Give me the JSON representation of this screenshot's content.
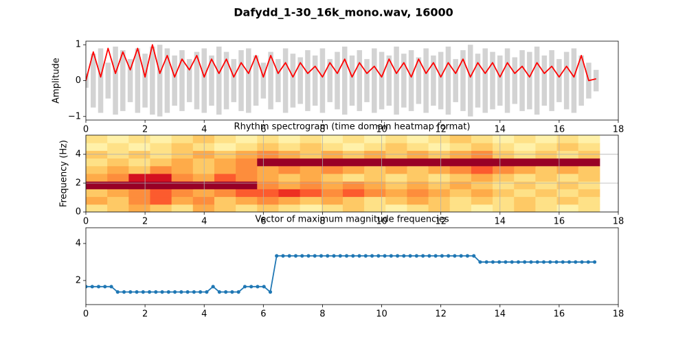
{
  "title": "Dafydd_1-30_16k_mono.wav, 16000",
  "chart_data": [
    {
      "type": "line",
      "ylabel": "Amplitude",
      "x": [
        0,
        0.25,
        0.5,
        0.75,
        1,
        1.25,
        1.5,
        1.75,
        2,
        2.25,
        2.5,
        2.75,
        3,
        3.25,
        3.5,
        3.75,
        4,
        4.25,
        4.5,
        4.75,
        5,
        5.25,
        5.5,
        5.75,
        6,
        6.25,
        6.5,
        6.75,
        7,
        7.25,
        7.5,
        7.75,
        8,
        8.25,
        8.5,
        8.75,
        9,
        9.25,
        9.5,
        9.75,
        10,
        10.25,
        10.5,
        10.75,
        11,
        11.25,
        11.5,
        11.75,
        12,
        12.25,
        12.5,
        12.75,
        13,
        13.25,
        13.5,
        13.75,
        14,
        14.25,
        14.5,
        14.75,
        15,
        15.25,
        15.5,
        15.75,
        16,
        16.25,
        16.5,
        16.75,
        17,
        17.25
      ],
      "series": [
        {
          "style": "band",
          "color": "#d3d3d3",
          "values": [
            0.2,
            0.75,
            0.9,
            0.5,
            0.95,
            0.85,
            0.6,
            0.9,
            0.75,
            0.95,
            1.0,
            0.9,
            0.7,
            0.85,
            0.6,
            0.8,
            0.9,
            0.7,
            0.95,
            0.8,
            0.6,
            0.85,
            0.9,
            0.7,
            0.5,
            0.8,
            0.6,
            0.9,
            0.75,
            0.65,
            0.85,
            0.7,
            0.9,
            0.6,
            0.8,
            0.95,
            0.7,
            0.85,
            0.6,
            0.9,
            0.8,
            0.7,
            0.95,
            0.75,
            0.85,
            0.65,
            0.9,
            0.7,
            0.8,
            0.95,
            0.6,
            0.85,
            1.0,
            0.75,
            0.9,
            0.8,
            0.7,
            0.9,
            0.65,
            0.85,
            0.8,
            0.95,
            0.7,
            0.85,
            0.6,
            0.8,
            0.9,
            0.7,
            0.5,
            0.3
          ]
        },
        {
          "style": "line",
          "color": "#ff0000",
          "values": [
            0,
            0.8,
            0.1,
            0.9,
            0.2,
            0.8,
            0.3,
            0.9,
            0.1,
            1.0,
            0.2,
            0.7,
            0.1,
            0.6,
            0.3,
            0.7,
            0.1,
            0.6,
            0.2,
            0.6,
            0.1,
            0.5,
            0.2,
            0.7,
            0.1,
            0.7,
            0.2,
            0.5,
            0.1,
            0.5,
            0.2,
            0.4,
            0.1,
            0.5,
            0.2,
            0.6,
            0.1,
            0.5,
            0.2,
            0.4,
            0.1,
            0.6,
            0.2,
            0.5,
            0.1,
            0.6,
            0.2,
            0.5,
            0.1,
            0.5,
            0.2,
            0.6,
            0.1,
            0.5,
            0.2,
            0.5,
            0.1,
            0.5,
            0.2,
            0.4,
            0.1,
            0.5,
            0.2,
            0.4,
            0.1,
            0.4,
            0.1,
            0.7,
            0.0,
            0.05
          ]
        }
      ],
      "xlim": [
        0,
        18
      ],
      "xticks": [
        0,
        2,
        4,
        6,
        8,
        10,
        12,
        14,
        16,
        18
      ],
      "ylim": [
        -1.1,
        1.1
      ],
      "yticks": [
        {
          "value": -1,
          "label": "−1"
        },
        0,
        1
      ],
      "grid": false
    },
    {
      "type": "heatmap",
      "title": "Rhythm spectrogram (time domain heatmap format)",
      "ylabel": "Frequency (Hz)",
      "colormap": "YlOrRd",
      "x_extent": [
        0,
        17.37
      ],
      "y_extent": [
        0,
        5.33
      ],
      "z": [
        [
          0.2,
          0.3,
          0.4,
          0.3,
          0.2,
          0.4,
          0.3,
          0.2,
          0.3,
          0.2,
          0.1,
          0.2,
          0.3,
          0.2,
          0.1,
          0.2,
          0.3,
          0.2,
          0.1,
          0.2,
          0.3,
          0.2,
          0.1,
          0.2
        ],
        [
          0.4,
          0.3,
          0.5,
          0.6,
          0.4,
          0.5,
          0.3,
          0.4,
          0.5,
          0.4,
          0.3,
          0.4,
          0.3,
          0.2,
          0.3,
          0.4,
          0.3,
          0.2,
          0.3,
          0.2,
          0.3,
          0.2,
          0.3,
          0.2
        ],
        [
          0.3,
          0.4,
          0.5,
          0.6,
          0.5,
          0.4,
          0.5,
          0.6,
          0.6,
          0.7,
          0.6,
          0.5,
          0.6,
          0.5,
          0.4,
          0.5,
          0.4,
          0.3,
          0.4,
          0.3,
          0.2,
          0.3,
          0.2,
          0.3
        ],
        [
          0.95,
          0.95,
          0.95,
          0.95,
          0.95,
          0.95,
          0.95,
          0.95,
          0.5,
          0.4,
          0.5,
          0.4,
          0.5,
          0.4,
          0.3,
          0.4,
          0.3,
          0.4,
          0.3,
          0.2,
          0.3,
          0.2,
          0.3,
          0.2
        ],
        [
          0.4,
          0.5,
          0.8,
          0.8,
          0.5,
          0.4,
          0.6,
          0.5,
          0.4,
          0.3,
          0.4,
          0.3,
          0.2,
          0.3,
          0.2,
          0.3,
          0.2,
          0.3,
          0.4,
          0.3,
          0.2,
          0.3,
          0.2,
          0.3
        ],
        [
          0.3,
          0.4,
          0.3,
          0.5,
          0.4,
          0.3,
          0.4,
          0.5,
          0.4,
          0.5,
          0.4,
          0.5,
          0.4,
          0.3,
          0.4,
          0.3,
          0.4,
          0.5,
          0.6,
          0.5,
          0.4,
          0.3,
          0.4,
          0.3
        ],
        [
          0.2,
          0.3,
          0.2,
          0.3,
          0.4,
          0.3,
          0.4,
          0.5,
          0.95,
          0.95,
          0.95,
          0.95,
          0.95,
          0.95,
          0.95,
          0.95,
          0.95,
          0.95,
          0.95,
          0.95,
          0.95,
          0.95,
          0.95,
          0.95
        ],
        [
          0.3,
          0.2,
          0.3,
          0.2,
          0.3,
          0.4,
          0.3,
          0.4,
          0.5,
          0.4,
          0.3,
          0.4,
          0.3,
          0.4,
          0.3,
          0.4,
          0.3,
          0.4,
          0.5,
          0.3,
          0.2,
          0.3,
          0.2,
          0.3
        ],
        [
          0.1,
          0.2,
          0.1,
          0.2,
          0.3,
          0.2,
          0.1,
          0.2,
          0.3,
          0.2,
          0.3,
          0.2,
          0.1,
          0.2,
          0.3,
          0.2,
          0.1,
          0.2,
          0.3,
          0.2,
          0.1,
          0.2,
          0.3,
          0.2
        ],
        [
          0.2,
          0.1,
          0.2,
          0.1,
          0.2,
          0.3,
          0.2,
          0.1,
          0.2,
          0.1,
          0.2,
          0.1,
          0.2,
          0.1,
          0.2,
          0.1,
          0.2,
          0.3,
          0.2,
          0.1,
          0.2,
          0.1,
          0.2,
          0.1
        ]
      ],
      "xlim": [
        0,
        18
      ],
      "xticks": [
        0,
        2,
        4,
        6,
        8,
        10,
        12,
        14,
        16,
        18
      ],
      "ylim": [
        0,
        5.33
      ],
      "yticks": [
        0,
        2,
        4
      ],
      "grid": true
    },
    {
      "type": "line",
      "title": "Vector of maximum magnitude frequencies",
      "x": [
        0,
        0.215,
        0.43,
        0.645,
        0.86,
        1.075,
        1.29,
        1.505,
        1.72,
        1.935,
        2.15,
        2.365,
        2.58,
        2.795,
        3.01,
        3.225,
        3.44,
        3.655,
        3.87,
        4.085,
        4.3,
        4.515,
        4.73,
        4.945,
        5.16,
        5.375,
        5.59,
        5.805,
        6.02,
        6.235,
        6.45,
        6.665,
        6.88,
        7.095,
        7.31,
        7.525,
        7.74,
        7.955,
        8.17,
        8.385,
        8.6,
        8.815,
        9.03,
        9.245,
        9.46,
        9.675,
        9.89,
        10.105,
        10.32,
        10.535,
        10.75,
        10.965,
        11.18,
        11.395,
        11.61,
        11.825,
        12.04,
        12.255,
        12.47,
        12.685,
        12.9,
        13.115,
        13.33,
        13.545,
        13.76,
        13.975,
        14.19,
        14.405,
        14.62,
        14.835,
        15.05,
        15.265,
        15.48,
        15.695,
        15.91,
        16.125,
        16.34,
        16.555,
        16.77,
        16.985,
        17.2
      ],
      "series": [
        {
          "style": "line",
          "marker": true,
          "color": "#1f77b4",
          "values": [
            1.67,
            1.67,
            1.67,
            1.67,
            1.67,
            1.38,
            1.38,
            1.38,
            1.38,
            1.38,
            1.38,
            1.38,
            1.38,
            1.38,
            1.38,
            1.38,
            1.38,
            1.38,
            1.38,
            1.38,
            1.67,
            1.38,
            1.38,
            1.38,
            1.38,
            1.67,
            1.67,
            1.67,
            1.67,
            1.38,
            3.33,
            3.33,
            3.33,
            3.33,
            3.33,
            3.33,
            3.33,
            3.33,
            3.33,
            3.33,
            3.33,
            3.33,
            3.33,
            3.33,
            3.33,
            3.33,
            3.33,
            3.33,
            3.33,
            3.33,
            3.33,
            3.33,
            3.33,
            3.33,
            3.33,
            3.33,
            3.33,
            3.33,
            3.33,
            3.33,
            3.33,
            3.33,
            3.0,
            3.0,
            3.0,
            3.0,
            3.0,
            3.0,
            3.0,
            3.0,
            3.0,
            3.0,
            3.0,
            3.0,
            3.0,
            3.0,
            3.0,
            3.0,
            3.0,
            3.0,
            3.0
          ]
        }
      ],
      "xlim": [
        0,
        18
      ],
      "xticks": [
        0,
        2,
        4,
        6,
        8,
        10,
        12,
        14,
        16,
        18
      ],
      "ylim": [
        0.7,
        4.85
      ],
      "yticks": [
        2,
        4
      ],
      "grid": false
    }
  ]
}
